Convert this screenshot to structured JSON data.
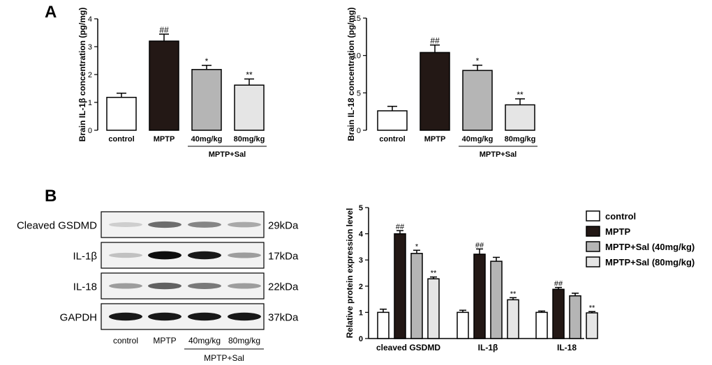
{
  "panels": {
    "a": "A",
    "b": "B"
  },
  "chart_data": [
    {
      "type": "bar",
      "categories": [
        "control",
        "MPTP",
        "40mg/kg",
        "80mg/kg"
      ],
      "values": [
        1.18,
        3.2,
        2.18,
        1.62
      ],
      "errors": [
        0.15,
        0.25,
        0.15,
        0.22
      ],
      "annotations": [
        "",
        "##",
        "*",
        "**"
      ],
      "ylabel": "Brain IL-1β concentration (pg/mg)",
      "group_label": "MPTP+Sal",
      "ylim": [
        0,
        4
      ],
      "yticks": [
        0,
        1,
        2,
        3,
        4
      ],
      "fill_colors": [
        "#ffffff",
        "#231815",
        "#b5b5b5",
        "#e5e5e5"
      ]
    },
    {
      "type": "bar",
      "categories": [
        "control",
        "MPTP",
        "40mg/kg",
        "80mg/kg"
      ],
      "values": [
        2.6,
        10.4,
        8.0,
        3.4
      ],
      "errors": [
        0.6,
        1.0,
        0.7,
        0.8
      ],
      "annotations": [
        "",
        "##",
        "*",
        "**"
      ],
      "ylabel": "Brain IL-18 concentration (pg/mg)",
      "group_label": "MPTP+Sal",
      "ylim": [
        0,
        15
      ],
      "yticks": [
        0,
        5,
        10,
        15
      ],
      "fill_colors": [
        "#ffffff",
        "#231815",
        "#b5b5b5",
        "#e5e5e5"
      ]
    },
    {
      "type": "bar",
      "categories": [
        "cleaved GSDMD",
        "IL-1β",
        "IL-18"
      ],
      "series": [
        {
          "name": "control",
          "values": [
            1.0,
            1.0,
            1.0
          ],
          "errors": [
            0.12,
            0.08,
            0.05
          ],
          "annotations": [
            "",
            "",
            ""
          ],
          "color": "#ffffff"
        },
        {
          "name": "MPTP",
          "values": [
            4.0,
            3.22,
            1.88
          ],
          "errors": [
            0.12,
            0.2,
            0.07
          ],
          "annotations": [
            "##",
            "##",
            "##"
          ],
          "color": "#231815"
        },
        {
          "name": "MPTP+Sal (40mg/kg)",
          "values": [
            3.25,
            2.95,
            1.63
          ],
          "errors": [
            0.12,
            0.15,
            0.1
          ],
          "annotations": [
            "*",
            "",
            ""
          ],
          "color": "#b5b5b5"
        },
        {
          "name": "MPTP+Sal (80mg/kg)",
          "values": [
            2.28,
            1.48,
            0.98
          ],
          "errors": [
            0.07,
            0.08,
            0.05
          ],
          "annotations": [
            "**",
            "**",
            "**"
          ],
          "color": "#e5e5e5"
        }
      ],
      "ylabel": "Relative protein expression level",
      "ylim": [
        0,
        5
      ],
      "yticks": [
        0,
        1,
        2,
        3,
        4,
        5
      ],
      "legend": "top-right"
    }
  ],
  "western_blot": {
    "rows": [
      {
        "label": "Cleaved GSDMD",
        "size": "29kDa",
        "intensity": [
          0.15,
          0.55,
          0.45,
          0.3
        ]
      },
      {
        "label": "IL-1β",
        "size": "17kDa",
        "intensity": [
          0.2,
          0.95,
          0.9,
          0.35
        ]
      },
      {
        "label": "IL-18",
        "size": "22kDa",
        "intensity": [
          0.35,
          0.6,
          0.5,
          0.35
        ]
      },
      {
        "label": "GAPDH",
        "size": "37kDa",
        "intensity": [
          0.9,
          0.9,
          0.9,
          0.9
        ]
      }
    ],
    "lanes": [
      "control",
      "MPTP",
      "40mg/kg",
      "80mg/kg"
    ],
    "group_label": "MPTP+Sal"
  }
}
